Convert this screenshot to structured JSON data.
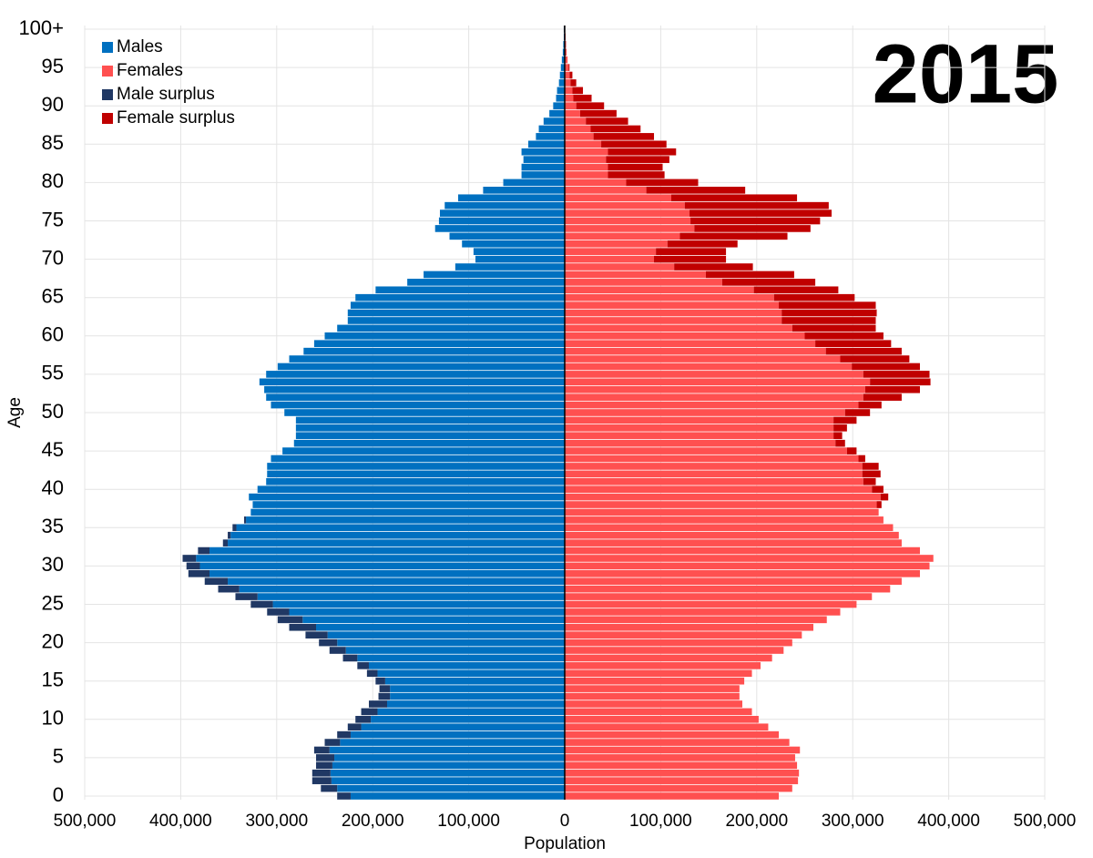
{
  "chart_data": {
    "type": "pyramid",
    "annotation": "2015",
    "xlabel": "Population",
    "ylabel": "Age",
    "y": [
      0,
      1,
      2,
      3,
      4,
      5,
      6,
      7,
      8,
      9,
      10,
      11,
      12,
      13,
      14,
      15,
      16,
      17,
      18,
      19,
      20,
      21,
      22,
      23,
      24,
      25,
      26,
      27,
      28,
      29,
      30,
      31,
      32,
      33,
      34,
      35,
      36,
      37,
      38,
      39,
      40,
      41,
      42,
      43,
      44,
      45,
      46,
      47,
      48,
      49,
      50,
      51,
      52,
      53,
      54,
      55,
      56,
      57,
      58,
      59,
      60,
      61,
      62,
      63,
      64,
      65,
      66,
      67,
      68,
      69,
      70,
      71,
      72,
      73,
      74,
      75,
      76,
      77,
      78,
      79,
      80,
      81,
      82,
      83,
      84,
      85,
      86,
      87,
      88,
      89,
      90,
      91,
      92,
      93,
      94,
      95,
      96,
      97,
      98,
      99,
      100
    ],
    "series": [
      {
        "name": "Males",
        "color": "#0070c0",
        "surplus_color": "#203864",
        "values": [
          -237000,
          -254000,
          -263000,
          -263000,
          -259000,
          -259000,
          -261000,
          -250000,
          -237000,
          -226000,
          -218000,
          -212000,
          -204000,
          -194000,
          -193000,
          -197000,
          -206000,
          -216000,
          -231000,
          -245000,
          -256000,
          -270000,
          -287000,
          -299000,
          -310000,
          -327000,
          -343000,
          -361000,
          -375000,
          -392000,
          -394000,
          -398000,
          -382000,
          -356000,
          -351000,
          -346000,
          -334000,
          -327000,
          -325000,
          -329000,
          -320000,
          -311000,
          -310000,
          -310000,
          -306000,
          -294000,
          -282000,
          -280000,
          -280000,
          -280000,
          -292000,
          -306000,
          -311000,
          -313000,
          -318000,
          -311000,
          -299000,
          -287000,
          -272000,
          -261000,
          -250000,
          -237000,
          -226000,
          -226000,
          -223000,
          -218000,
          -197000,
          -164000,
          -147000,
          -114000,
          -93000,
          -95000,
          -107000,
          -120000,
          -135000,
          -131000,
          -130000,
          -125000,
          -111000,
          -85000,
          -64000,
          -45000,
          -45000,
          -43000,
          -45000,
          -38000,
          -30000,
          -27000,
          -22000,
          -16000,
          -12000,
          -9000,
          -8000,
          -6000,
          -5000,
          -4000,
          -3000,
          -2000,
          -1500,
          -1000,
          -1000
        ]
      },
      {
        "name": "Females",
        "color": "#ff5050",
        "surplus_color": "#c00000",
        "values": [
          223000,
          237000,
          243000,
          244000,
          242000,
          240000,
          245000,
          234000,
          223000,
          212000,
          202000,
          195000,
          185000,
          182000,
          182000,
          187000,
          195000,
          204000,
          216000,
          228000,
          237000,
          247000,
          259000,
          273000,
          287000,
          304000,
          320000,
          339000,
          351000,
          370000,
          380000,
          384000,
          370000,
          351000,
          348000,
          342000,
          332000,
          327000,
          330000,
          337000,
          332000,
          324000,
          329000,
          327000,
          313000,
          304000,
          292000,
          289000,
          294000,
          304000,
          318000,
          330000,
          351000,
          370000,
          381000,
          380000,
          370000,
          359000,
          351000,
          340000,
          332000,
          324000,
          324000,
          325000,
          324000,
          302000,
          285000,
          261000,
          239000,
          196000,
          168000,
          168000,
          180000,
          232000,
          256000,
          266000,
          278000,
          275000,
          242000,
          188000,
          139000,
          104000,
          102000,
          109000,
          116000,
          106000,
          93000,
          79000,
          66000,
          54000,
          41000,
          28000,
          19000,
          12000,
          8000,
          5000,
          3000,
          2000,
          1500,
          1000,
          500
        ]
      }
    ],
    "surplus_names": [
      "Male surplus",
      "Female surplus"
    ],
    "xlim": [
      -500000,
      500000
    ],
    "xticks": [
      {
        "value": -500000,
        "label": "500,000"
      },
      {
        "value": -400000,
        "label": "400,000"
      },
      {
        "value": -300000,
        "label": "300,000"
      },
      {
        "value": -200000,
        "label": "200,000"
      },
      {
        "value": -100000,
        "label": "100,000"
      },
      0,
      {
        "value": 100000,
        "label": "100,000"
      },
      {
        "value": 200000,
        "label": "200,000"
      },
      {
        "value": 300000,
        "label": "300,000"
      },
      {
        "value": 400000,
        "label": "400,000"
      },
      {
        "value": 500000,
        "label": "500,000"
      }
    ],
    "ylim": [
      0,
      100
    ],
    "yticks": [
      0,
      5,
      10,
      15,
      20,
      25,
      30,
      35,
      40,
      45,
      50,
      55,
      60,
      65,
      70,
      75,
      80,
      85,
      90,
      95,
      {
        "value": 100,
        "label": "100+"
      }
    ],
    "grid": true,
    "legend": "upper left"
  }
}
